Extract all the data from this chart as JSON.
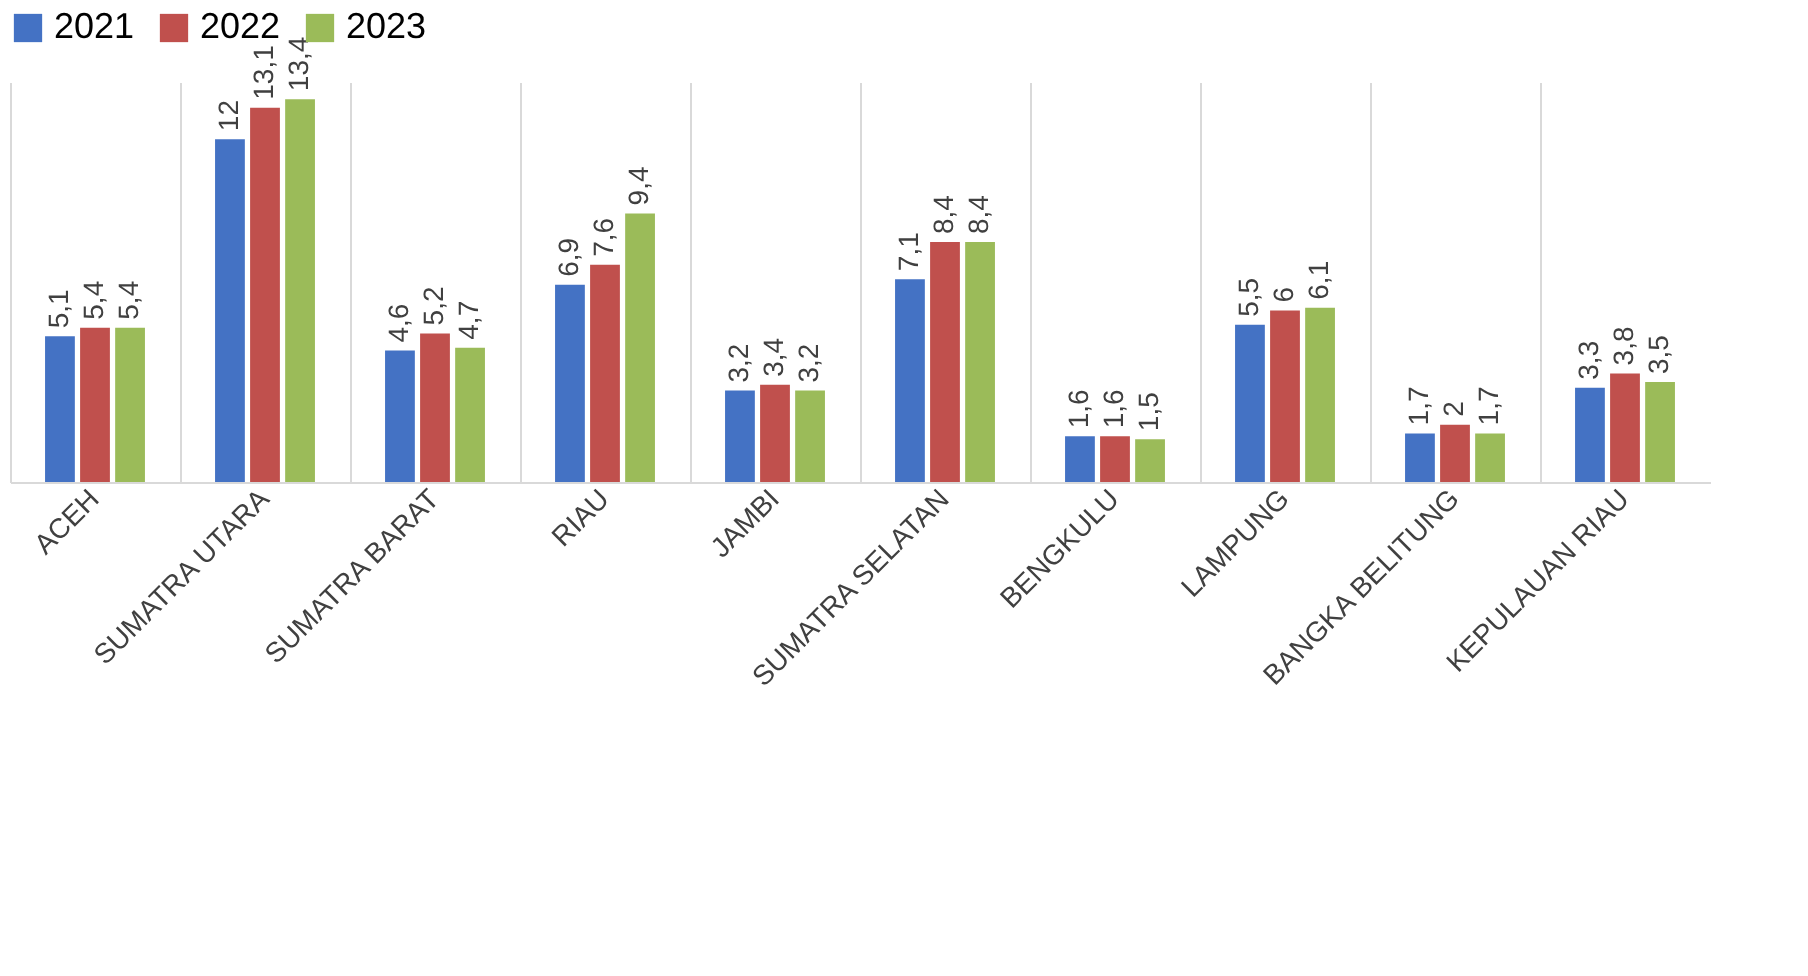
{
  "chart_data": {
    "type": "bar",
    "categories": [
      "ACEH",
      "SUMATRA UTARA",
      "SUMATRA BARAT",
      "RIAU",
      "JAMBI",
      "SUMATRA SELATAN",
      "BENGKULU",
      "LAMPUNG",
      "BANGKA BELITUNG",
      "KEPULAUAN RIAU"
    ],
    "series": [
      {
        "name": "2021",
        "color": "#4472c4",
        "values": [
          5.1,
          12,
          4.6,
          6.9,
          3.2,
          7.1,
          1.6,
          5.5,
          1.7,
          3.3
        ],
        "value_labels": [
          "5,1",
          "12",
          "4,6",
          "6,9",
          "3,2",
          "7,1",
          "1,6",
          "5,5",
          "1,7",
          "3,3"
        ]
      },
      {
        "name": "2022",
        "color": "#c0504d",
        "values": [
          5.4,
          13.1,
          5.2,
          7.6,
          3.4,
          8.4,
          1.6,
          6,
          2,
          3.8
        ],
        "value_labels": [
          "5,4",
          "13,1",
          "5,2",
          "7,6",
          "3,4",
          "8,4",
          "1,6",
          "6",
          "2",
          "3,8"
        ]
      },
      {
        "name": "2023",
        "color": "#9bbb59",
        "values": [
          5.4,
          13.4,
          4.7,
          9.4,
          3.2,
          8.4,
          1.5,
          6.1,
          1.7,
          3.5
        ],
        "value_labels": [
          "5,4",
          "13,4",
          "4,7",
          "9,4",
          "3,2",
          "8,4",
          "1,5",
          "6,1",
          "1,7",
          "3,5"
        ]
      }
    ],
    "grid": "x",
    "legend": "top"
  }
}
